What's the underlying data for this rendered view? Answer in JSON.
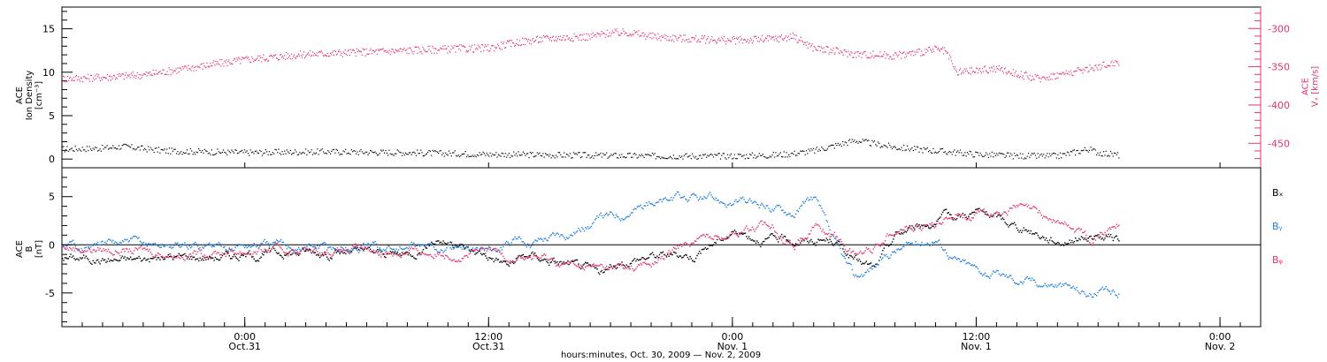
{
  "colors": {
    "black": "#000000",
    "pink": "#e8336a",
    "blue": "#1f7fe0"
  },
  "x_range": [
    "2009-10-30T15:00",
    "2009-11-02T02:00"
  ],
  "time_ticks": [
    {
      "time": "2009-10-31T00:00",
      "top": "0:00",
      "bottom": "Oct.31"
    },
    {
      "time": "2009-10-31T12:00",
      "top": "12:00",
      "bottom": "Oct.31"
    },
    {
      "time": "2009-11-01T00:00",
      "top": "0:00",
      "bottom": "Nov. 1"
    },
    {
      "time": "2009-11-01T12:00",
      "top": "12:00",
      "bottom": "Nov. 1"
    },
    {
      "time": "2009-11-02T00:00",
      "top": "0:00",
      "bottom": "Nov. 2"
    }
  ],
  "x_title": "hours:minutes, Oct. 30, 2009 — Nov.  2, 2009",
  "chart_data": [
    {
      "type": "scatter",
      "panel": "top",
      "ylabel": [
        "ACE",
        "Ion Density",
        "[cm⁻³]"
      ],
      "ylim": [
        -1,
        17.5
      ],
      "yticks": [
        0,
        5,
        10,
        15
      ],
      "y2label": [
        "ACE",
        "Vₓ [km/s]"
      ],
      "y2lim": [
        -482,
        -272
      ],
      "y2ticks": [
        -300,
        -350,
        -400,
        -450
      ],
      "series": [
        {
          "axis": "left",
          "color": "black",
          "x": [
            "2009-10-30T15:00",
            "2009-10-30T17:00",
            "2009-10-30T18:00",
            "2009-10-30T20:00",
            "2009-10-31T00:00",
            "2009-10-31T04:00",
            "2009-10-31T08:00",
            "2009-10-31T12:00",
            "2009-10-31T16:00",
            "2009-10-31T20:00",
            "2009-11-01T00:00",
            "2009-11-01T02:00",
            "2009-11-01T03:00",
            "2009-11-01T04:00",
            "2009-11-01T05:00",
            "2009-11-01T06:00",
            "2009-11-01T07:00",
            "2009-11-01T08:00",
            "2009-11-01T10:00",
            "2009-11-01T12:00",
            "2009-11-01T14:00",
            "2009-11-01T16:00",
            "2009-11-01T17:30",
            "2009-11-01T18:00",
            "2009-11-01T19:00"
          ],
          "y": [
            1.2,
            1.3,
            1.5,
            1.0,
            0.8,
            0.9,
            0.8,
            0.6,
            0.5,
            0.4,
            0.4,
            0.5,
            0.7,
            1.0,
            1.6,
            2.2,
            1.8,
            1.4,
            1.0,
            0.6,
            0.4,
            0.4,
            1.2,
            0.8,
            0.5
          ]
        },
        {
          "axis": "right",
          "color": "pink",
          "x": [
            "2009-10-30T15:00",
            "2009-10-30T17:00",
            "2009-10-30T19:00",
            "2009-10-30T21:00",
            "2009-10-31T00:00",
            "2009-10-31T03:00",
            "2009-10-31T06:00",
            "2009-10-31T09:00",
            "2009-10-31T12:00",
            "2009-10-31T13:30",
            "2009-10-31T15:00",
            "2009-10-31T17:00",
            "2009-10-31T18:00",
            "2009-10-31T19:00",
            "2009-10-31T20:00",
            "2009-10-31T22:00",
            "2009-11-01T00:00",
            "2009-11-01T02:00",
            "2009-11-01T03:00",
            "2009-11-01T04:00",
            "2009-11-01T06:00",
            "2009-11-01T08:00",
            "2009-11-01T10:00",
            "2009-11-01T10:30",
            "2009-11-01T11:00",
            "2009-11-01T13:00",
            "2009-11-01T15:00",
            "2009-11-01T17:00",
            "2009-11-01T19:00"
          ],
          "y": [
            -365,
            -363,
            -360,
            -352,
            -340,
            -333,
            -330,
            -327,
            -325,
            -317,
            -312,
            -310,
            -305,
            -305,
            -310,
            -313,
            -315,
            -313,
            -310,
            -325,
            -333,
            -335,
            -327,
            -330,
            -357,
            -352,
            -365,
            -355,
            -343
          ]
        }
      ]
    },
    {
      "type": "line",
      "panel": "bottom",
      "ylabel": [
        "ACE",
        "B",
        "[nT]"
      ],
      "ylim": [
        -8.5,
        8
      ],
      "yticks": [
        -5,
        0,
        5
      ],
      "series": [
        {
          "name": "Bₓ",
          "color": "black",
          "x": [
            "2009-10-30T15:00",
            "2009-10-30T18:00",
            "2009-10-30T21:00",
            "2009-10-31T00:00",
            "2009-10-31T03:00",
            "2009-10-31T06:00",
            "2009-10-31T08:00",
            "2009-10-31T09:30",
            "2009-10-31T11:00",
            "2009-10-31T12:00",
            "2009-10-31T13:00",
            "2009-10-31T14:00",
            "2009-10-31T16:00",
            "2009-10-31T17:30",
            "2009-10-31T19:00",
            "2009-10-31T20:00",
            "2009-10-31T22:00",
            "2009-11-01T00:00",
            "2009-11-01T01:00",
            "2009-11-01T02:00",
            "2009-11-01T03:00",
            "2009-11-01T05:00",
            "2009-11-01T06:00",
            "2009-11-01T07:00",
            "2009-11-01T08:00",
            "2009-11-01T09:00",
            "2009-11-01T10:00",
            "2009-11-01T11:00",
            "2009-11-01T12:00",
            "2009-11-01T14:00",
            "2009-11-01T16:00",
            "2009-11-01T17:30",
            "2009-11-01T19:00"
          ],
          "y": [
            -1.2,
            -1.5,
            -1.2,
            -1.0,
            -0.6,
            -0.8,
            -1.0,
            0.8,
            -0.5,
            -1.0,
            -2.0,
            -1.0,
            -2.0,
            -3.0,
            -1.5,
            -1.0,
            -1.0,
            1.5,
            1.0,
            0.5,
            0.5,
            0.5,
            -1.5,
            -2.5,
            1.0,
            2.0,
            2.5,
            3.0,
            3.5,
            2.0,
            0.5,
            1.0,
            0.5
          ]
        },
        {
          "name": "Bᵧ",
          "color": "blue",
          "x": [
            "2009-10-30T15:00",
            "2009-10-30T18:00",
            "2009-10-30T21:00",
            "2009-10-31T00:00",
            "2009-10-31T04:00",
            "2009-10-31T08:00",
            "2009-10-31T12:00",
            "2009-10-31T14:00",
            "2009-10-31T16:00",
            "2009-10-31T18:00",
            "2009-10-31T20:00",
            "2009-10-31T22:00",
            "2009-11-01T00:00",
            "2009-11-01T02:00",
            "2009-11-01T03:00",
            "2009-11-01T04:00",
            "2009-11-01T05:00",
            "2009-11-01T06:00",
            "2009-11-01T07:00",
            "2009-11-01T08:00",
            "2009-11-01T10:00",
            "2009-11-01T11:00",
            "2009-11-01T12:00",
            "2009-11-01T14:00",
            "2009-11-01T16:00",
            "2009-11-01T17:30",
            "2009-11-01T19:00"
          ],
          "y": [
            0,
            0.2,
            0,
            0.1,
            -0.2,
            -0.3,
            -0.4,
            0.5,
            1.5,
            3.0,
            4.5,
            4.8,
            4.5,
            4.0,
            3.5,
            5.0,
            0,
            -3.5,
            -2.0,
            -0.5,
            0.8,
            -1.5,
            -2.5,
            -3.5,
            -4.0,
            -5.0,
            -5.0
          ]
        },
        {
          "name": "Bᵩ",
          "color": "pink",
          "x": [
            "2009-10-30T15:00",
            "2009-10-30T18:00",
            "2009-10-30T21:00",
            "2009-10-31T00:00",
            "2009-10-31T04:00",
            "2009-10-31T08:00",
            "2009-10-31T12:00",
            "2009-10-31T14:00",
            "2009-10-31T16:00",
            "2009-10-31T18:00",
            "2009-10-31T20:00",
            "2009-10-31T22:00",
            "2009-11-01T00:00",
            "2009-11-01T02:00",
            "2009-11-01T03:00",
            "2009-11-01T04:00",
            "2009-11-01T05:00",
            "2009-11-01T06:00",
            "2009-11-01T07:00",
            "2009-11-01T08:00",
            "2009-11-01T10:00",
            "2009-11-01T11:00",
            "2009-11-01T12:00",
            "2009-11-01T14:00",
            "2009-11-01T16:00",
            "2009-11-01T17:30",
            "2009-11-01T19:00"
          ],
          "y": [
            -0.2,
            -0.5,
            -0.8,
            -0.6,
            -0.5,
            -0.7,
            -0.8,
            -1.2,
            -2.0,
            -2.5,
            -2.0,
            0.5,
            1.5,
            2.0,
            0,
            2.0,
            1.0,
            -1.0,
            0,
            2.0,
            2.0,
            3.5,
            3.0,
            4.0,
            2.5,
            1.0,
            2.0
          ]
        }
      ]
    }
  ]
}
